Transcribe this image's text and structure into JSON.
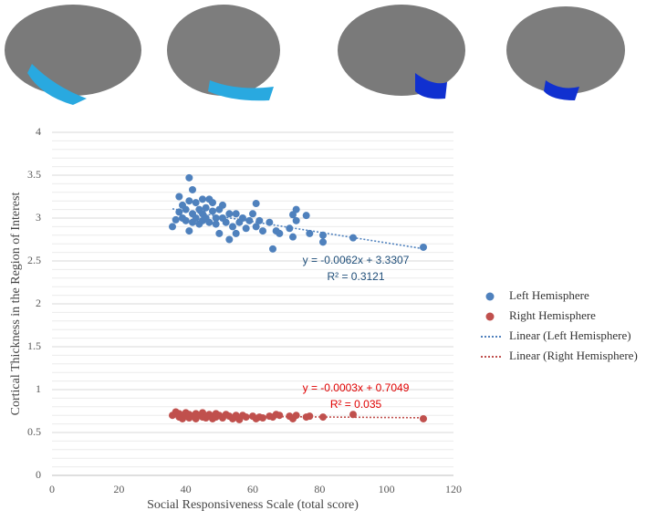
{
  "chart_data": {
    "type": "scatter",
    "x_label": "Social Responsiveness Scale (total score)",
    "y_label": "Cortical Thickness in the Region of Interest",
    "xlim": [
      0,
      120
    ],
    "xticks": [
      0,
      20,
      40,
      60,
      80,
      100,
      120
    ],
    "ylim": [
      0,
      4
    ],
    "yticks": [
      0,
      0.5,
      1,
      1.5,
      2,
      2.5,
      3,
      3.5,
      4
    ],
    "y_minor_ticks": [
      0.1,
      0.2,
      0.3,
      0.4,
      0.6,
      0.7,
      0.8,
      0.9,
      1.1,
      1.2,
      1.3,
      1.4,
      1.6,
      1.7,
      1.8,
      1.9,
      2.1,
      2.2,
      2.3,
      2.4,
      2.6,
      2.7,
      2.8,
      2.9,
      3.1,
      3.2,
      3.3,
      3.4,
      3.6,
      3.7,
      3.8,
      3.9
    ],
    "grid": true,
    "series": [
      {
        "name": "Left Hemisphere",
        "color": "#4f81bd",
        "x": [
          36,
          37,
          38,
          38,
          39,
          39,
          40,
          40,
          41,
          41,
          41,
          42,
          42,
          42,
          43,
          43,
          44,
          44,
          45,
          45,
          45,
          46,
          46,
          47,
          47,
          48,
          48,
          49,
          49,
          50,
          50,
          51,
          51,
          52,
          53,
          53,
          54,
          55,
          55,
          56,
          57,
          58,
          59,
          60,
          61,
          61,
          62,
          63,
          65,
          66,
          67,
          68,
          71,
          72,
          72,
          73,
          73,
          76,
          77,
          81,
          81,
          90,
          111
        ],
        "values": [
          2.9,
          2.98,
          3.07,
          3.25,
          3.0,
          3.15,
          2.97,
          3.1,
          3.47,
          2.85,
          3.2,
          3.05,
          3.33,
          2.95,
          3.0,
          3.18,
          2.93,
          3.1,
          3.05,
          3.22,
          2.97,
          3.12,
          3.0,
          3.22,
          2.95,
          3.08,
          3.18,
          3.0,
          2.93,
          3.1,
          2.82,
          3.0,
          3.15,
          2.95,
          3.05,
          2.75,
          2.9,
          3.05,
          2.82,
          2.95,
          3.0,
          2.88,
          2.97,
          3.05,
          3.17,
          2.9,
          2.97,
          2.85,
          2.95,
          2.64,
          2.85,
          2.82,
          2.88,
          3.04,
          2.78,
          3.1,
          2.97,
          3.03,
          2.82,
          2.8,
          2.72,
          2.77,
          2.66
        ],
        "trendline": {
          "name": "Linear (Left Hemisphere)",
          "slope": -0.0062,
          "intercept": 3.3307,
          "label": "y = -0.0062x + 3.3307",
          "r2_label": "R² = 0.3121",
          "label_color": "#1f4e79"
        }
      },
      {
        "name": "Right Hemisphere",
        "color": "#c0504d",
        "x": [
          36,
          37,
          38,
          38,
          39,
          40,
          40,
          41,
          41,
          42,
          43,
          43,
          44,
          45,
          45,
          46,
          47,
          47,
          48,
          49,
          49,
          50,
          51,
          52,
          53,
          54,
          55,
          55,
          56,
          57,
          58,
          60,
          61,
          62,
          63,
          65,
          66,
          67,
          68,
          71,
          72,
          73,
          76,
          77,
          81,
          90,
          111
        ],
        "values": [
          0.7,
          0.74,
          0.68,
          0.72,
          0.66,
          0.7,
          0.73,
          0.67,
          0.71,
          0.69,
          0.72,
          0.66,
          0.7,
          0.68,
          0.73,
          0.67,
          0.71,
          0.69,
          0.66,
          0.72,
          0.68,
          0.7,
          0.67,
          0.71,
          0.69,
          0.66,
          0.7,
          0.68,
          0.65,
          0.7,
          0.68,
          0.69,
          0.66,
          0.68,
          0.67,
          0.69,
          0.68,
          0.71,
          0.7,
          0.69,
          0.66,
          0.7,
          0.68,
          0.69,
          0.68,
          0.71,
          0.66
        ],
        "trendline": {
          "name": "Linear (Right Hemisphere)",
          "slope": -0.0003,
          "intercept": 0.7049,
          "label": "y = -0.0003x + 0.7049",
          "r2_label": "R² = 0.035",
          "label_color": "#e00000"
        }
      }
    ]
  }
}
